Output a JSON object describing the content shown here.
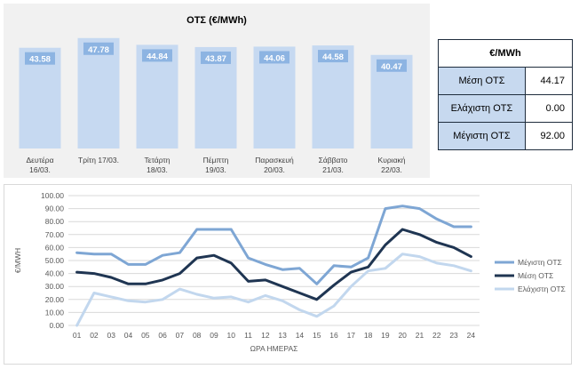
{
  "charts": {
    "bar": {
      "title": "ΟΤΣ (€/MWh)"
    },
    "line": {
      "ylabel": "€/MWH",
      "xlabel": "ΩΡΑ ΗΜΕΡΑΣ"
    }
  },
  "stats_table": {
    "header": "€/MWh",
    "rows": [
      {
        "label": "Μέση ΟΤΣ",
        "value": "44.17"
      },
      {
        "label": "Ελάχιστη ΟΤΣ",
        "value": "0.00"
      },
      {
        "label": "Μέγιστη ΟΤΣ",
        "value": "92.00"
      }
    ]
  },
  "chart_data": [
    {
      "type": "bar",
      "title": "ΟΤΣ (€/MWh)",
      "categories": [
        "Δευτέρα 16/03.",
        "Τρίτη 17/03.",
        "Τετάρτη 18/03.",
        "Πέμπτη 19/03.",
        "Παρασκευή 20/03.",
        "Σάββατο 21/03.",
        "Κυριακή 22/03."
      ],
      "values": [
        43.58,
        47.78,
        44.84,
        43.87,
        44.06,
        44.58,
        40.47
      ],
      "value_labels": [
        "43.58",
        "47.78",
        "44.84",
        "43.87",
        "44.06",
        "44.58",
        "40.47"
      ],
      "bar_color": "#c6d9f1",
      "label_color": "#8db4e2",
      "grid": false
    },
    {
      "type": "line",
      "title": "",
      "xlabel": "ΩΡΑ ΗΜΕΡΑΣ",
      "ylabel": "€/MWH",
      "ylim": [
        0,
        100
      ],
      "yticks": [
        "0.00",
        "10.00",
        "20.00",
        "30.00",
        "40.00",
        "50.00",
        "60.00",
        "70.00",
        "80.00",
        "90.00",
        "100.00"
      ],
      "x": [
        "01",
        "02",
        "03",
        "04",
        "05",
        "06",
        "07",
        "08",
        "09",
        "10",
        "11",
        "12",
        "13",
        "14",
        "15",
        "16",
        "17",
        "18",
        "19",
        "20",
        "21",
        "22",
        "23",
        "24"
      ],
      "grid": true,
      "legend_position": "right",
      "series": [
        {
          "name": "Μέγιστη ΟΤΣ",
          "color": "#7ea6d4",
          "values": [
            56,
            55,
            55,
            47,
            47,
            54,
            56,
            74,
            74,
            74,
            52,
            47,
            43,
            44,
            32,
            46,
            45,
            52,
            90,
            92,
            90,
            82,
            76,
            76
          ]
        },
        {
          "name": "Μέση ΟΤΣ",
          "color": "#1f3552",
          "values": [
            41,
            40,
            37,
            32,
            32,
            35,
            40,
            52,
            54,
            48,
            34,
            35,
            30,
            25,
            20,
            31,
            41,
            45,
            62,
            74,
            70,
            64,
            60,
            53
          ]
        },
        {
          "name": "Ελάχιστη ΟΤΣ",
          "color": "#c2d7ee",
          "values": [
            0,
            25,
            22,
            19,
            18,
            20,
            28,
            24,
            21,
            22,
            18,
            23,
            19,
            12,
            7,
            15,
            30,
            42,
            44,
            55,
            53,
            48,
            46,
            42
          ]
        }
      ]
    }
  ]
}
